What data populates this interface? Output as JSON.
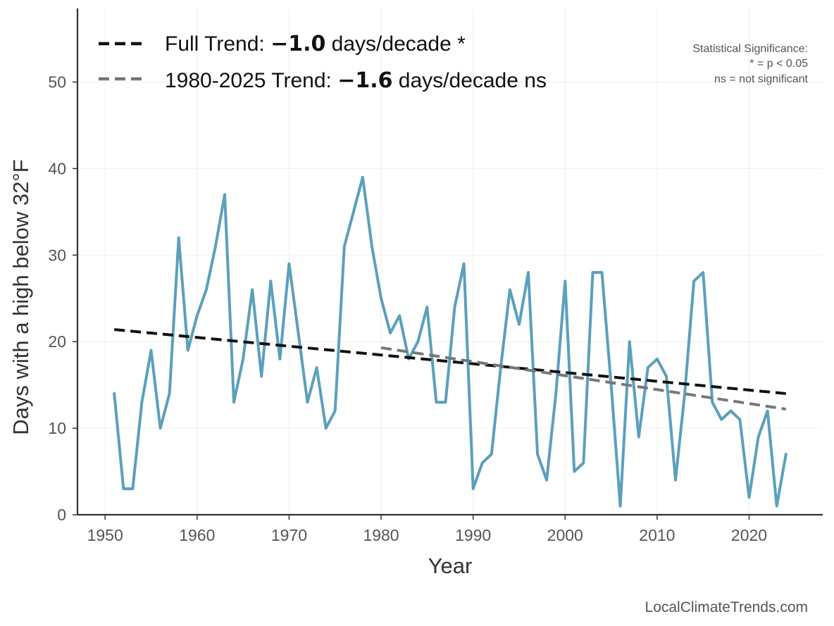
{
  "chart_data": {
    "type": "line",
    "xlabel": "Year",
    "ylabel": "Days with a high below 32°F",
    "xlim": [
      1947,
      2028
    ],
    "ylim": [
      0,
      58.5
    ],
    "xticks": [
      1950,
      1960,
      1970,
      1980,
      1990,
      2000,
      2010,
      2020
    ],
    "yticks": [
      0,
      10,
      20,
      30,
      40,
      50
    ],
    "grid": true,
    "legend_position": "top-left",
    "series": [
      {
        "color": "#5ba0bd",
        "x": [
          1951,
          1952,
          1953,
          1954,
          1955,
          1956,
          1957,
          1958,
          1959,
          1960,
          1961,
          1962,
          1963,
          1964,
          1965,
          1966,
          1967,
          1968,
          1969,
          1970,
          1971,
          1972,
          1973,
          1974,
          1975,
          1976,
          1977,
          1978,
          1979,
          1980,
          1981,
          1982,
          1983,
          1984,
          1985,
          1986,
          1987,
          1988,
          1989,
          1990,
          1991,
          1992,
          1993,
          1994,
          1995,
          1996,
          1997,
          1998,
          1999,
          2000,
          2001,
          2002,
          2003,
          2004,
          2005,
          2006,
          2007,
          2008,
          2009,
          2010,
          2011,
          2012,
          2013,
          2014,
          2015,
          2016,
          2017,
          2018,
          2019,
          2020,
          2021,
          2022,
          2023,
          2024
        ],
        "values": [
          14,
          3,
          3,
          13,
          19,
          10,
          14,
          32,
          19,
          23,
          26,
          31,
          37,
          13,
          18,
          26,
          16,
          27,
          18,
          29,
          21,
          13,
          17,
          10,
          12,
          31,
          35,
          39,
          31,
          25,
          21,
          23,
          18,
          20,
          24,
          13,
          13,
          24,
          29,
          3,
          6,
          7,
          17,
          26,
          22,
          28,
          7,
          4,
          14,
          27,
          5,
          6,
          28,
          28,
          15,
          1,
          20,
          9,
          17,
          18,
          16,
          4,
          14,
          27,
          28,
          13,
          11,
          12,
          11,
          2,
          9,
          12,
          1,
          7
        ]
      }
    ],
    "trends": [
      {
        "name": "Full Trend",
        "label_prefix": "Full Trend: ",
        "label_value": "−1.0",
        "label_suffix": " days/decade *",
        "color": "#111111",
        "x": [
          1951,
          2024
        ],
        "values": [
          21.4,
          14.0
        ]
      },
      {
        "name": "1980-2025 Trend",
        "label_prefix": "1980-2025 Trend: ",
        "label_value": "−1.6",
        "label_suffix": " days/decade ns",
        "color": "#777777",
        "x": [
          1980,
          2024
        ],
        "values": [
          19.3,
          12.2
        ]
      }
    ],
    "annotations": [
      "Statistical Significance:",
      "* = p < 0.05",
      "ns = not significant"
    ],
    "credit": "LocalClimateTrends.com"
  }
}
